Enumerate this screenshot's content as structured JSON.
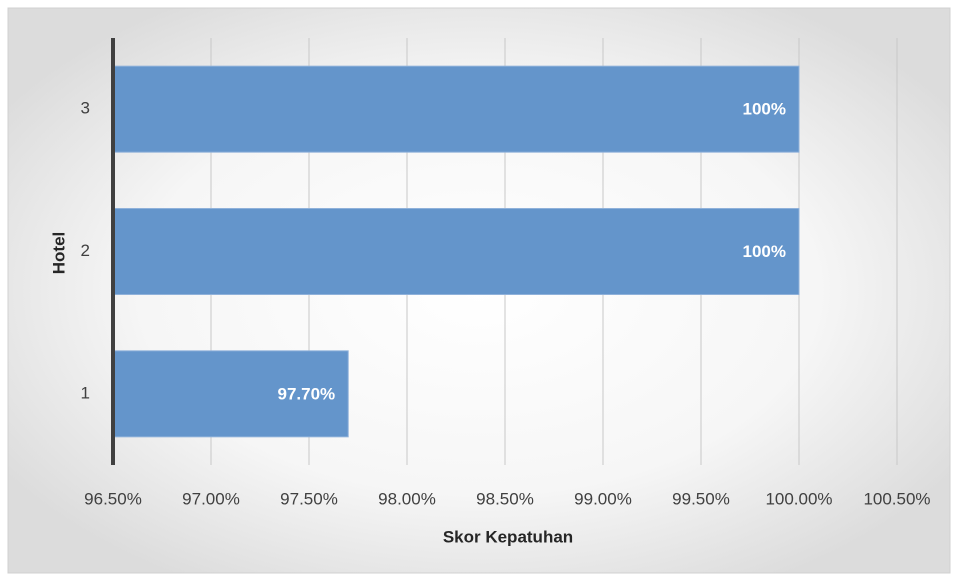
{
  "chart_data": {
    "type": "barh",
    "xlabel": "Skor Kepatuhan",
    "ylabel": "Hotel",
    "categories": [
      "1",
      "2",
      "3"
    ],
    "values": [
      97.7,
      100,
      100
    ],
    "value_labels": [
      "97.70%",
      "100%",
      "100%"
    ],
    "color": "#6495cb",
    "xlim": [
      96.5,
      100.5
    ],
    "xticks": [
      {
        "value": 96.5,
        "label": "96.50%"
      },
      {
        "value": 97,
        "label": "97.00%"
      },
      {
        "value": 97.5,
        "label": "97.50%"
      },
      {
        "value": 98,
        "label": "98.00%"
      },
      {
        "value": 98.5,
        "label": "98.50%"
      },
      {
        "value": 99,
        "label": "99.00%"
      },
      {
        "value": 99.5,
        "label": "99.50%"
      },
      {
        "value": 100,
        "label": "100.00%"
      },
      {
        "value": 100.5,
        "label": "100.50%"
      }
    ],
    "grid": true
  }
}
